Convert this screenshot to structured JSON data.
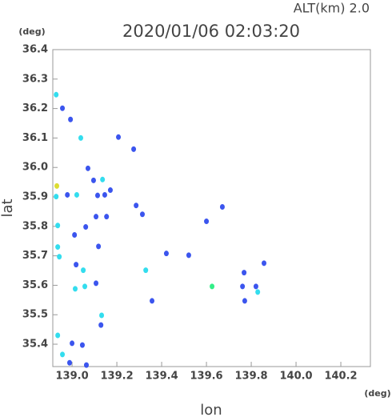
{
  "chart_data": {
    "type": "scatter",
    "title": "2020/01/06 02:03:20",
    "altitude_label": "ALT(km)  2.0",
    "y_unit": "(deg)",
    "x_unit": "(deg)",
    "xlabel": "lon",
    "ylabel": "lat",
    "xlim": [
      138.914,
      140.332
    ],
    "ylim": [
      35.324,
      36.4
    ],
    "xticks": [
      {
        "value": 139.0,
        "label": "139.0"
      },
      139.2,
      139.4,
      139.6,
      139.8,
      {
        "value": 140.0,
        "label": "140.0"
      },
      140.2
    ],
    "yticks": [
      36.4,
      36.3,
      36.2,
      36.1,
      {
        "value": 36.0,
        "label": "36.0"
      },
      35.9,
      35.8,
      35.7,
      35.6,
      35.5,
      35.4
    ],
    "series": [
      {
        "color": "#3b55ee",
        "x": [
          138.957,
          138.993,
          139.207,
          139.275,
          139.071,
          139.096,
          138.979,
          139.114,
          139.146,
          139.171,
          139.286,
          139.314,
          139.671,
          139.6,
          139.011,
          139.061,
          139.107,
          139.154,
          139.118,
          139.421,
          139.521,
          139.018,
          139.768,
          139.857,
          139.107,
          139.761,
          139.821,
          139.771,
          139.357,
          139.129,
          139.0,
          139.046,
          138.989,
          139.064
        ],
        "y": [
          36.201,
          36.163,
          36.103,
          36.062,
          35.997,
          35.956,
          35.907,
          35.905,
          35.907,
          35.923,
          35.871,
          35.841,
          35.866,
          35.817,
          35.771,
          35.798,
          35.833,
          35.833,
          35.732,
          35.708,
          35.702,
          35.67,
          35.643,
          35.675,
          35.607,
          35.596,
          35.596,
          35.547,
          35.547,
          35.465,
          35.403,
          35.397,
          35.337,
          35.329
        ]
      },
      {
        "color": "#33ddee",
        "x": [
          138.929,
          139.039,
          139.136,
          138.929,
          139.021,
          138.936,
          138.936,
          138.943,
          139.05,
          139.329,
          139.014,
          139.057,
          139.829,
          139.132,
          138.936,
          138.957
        ],
        "y": [
          36.247,
          36.1,
          35.959,
          35.901,
          35.907,
          35.803,
          35.73,
          35.697,
          35.651,
          35.651,
          35.588,
          35.596,
          35.577,
          35.498,
          35.43,
          35.365
        ]
      },
      {
        "color": "#dddd33",
        "x": [
          138.932
        ],
        "y": [
          35.937
        ]
      },
      {
        "color": "#33ee88",
        "x": [
          139.625
        ],
        "y": [
          35.596
        ]
      }
    ]
  }
}
